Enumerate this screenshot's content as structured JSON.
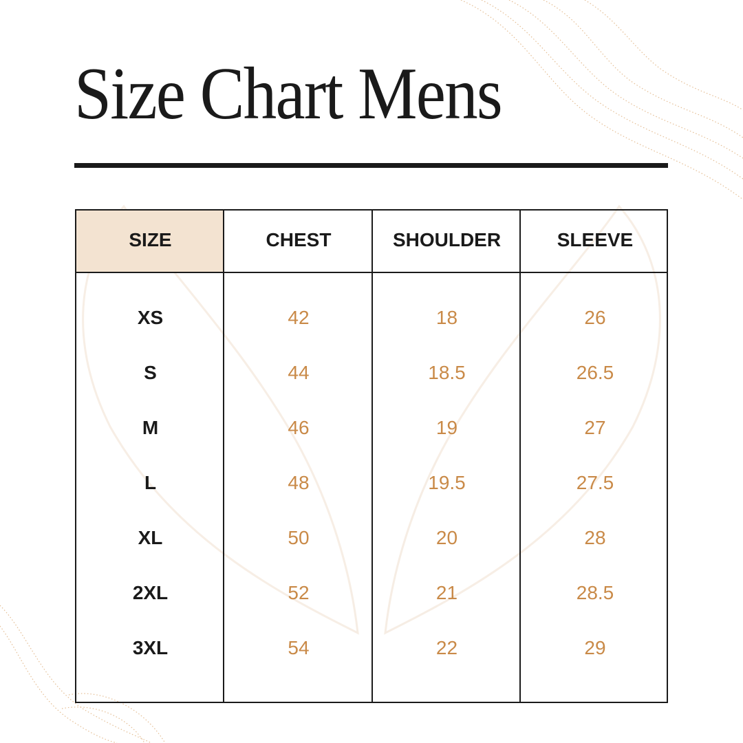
{
  "header": {
    "title": "Size Chart Mens"
  },
  "table": {
    "columns": [
      "SIZE",
      "CHEST",
      "SHOULDER",
      "SLEEVE"
    ],
    "rows": [
      [
        "XS",
        "42",
        "18",
        "26"
      ],
      [
        "S",
        "44",
        "18.5",
        "26.5"
      ],
      [
        "M",
        "46",
        "19",
        "27"
      ],
      [
        "L",
        "48",
        "19.5",
        "27.5"
      ],
      [
        "XL",
        "50",
        "20",
        "28"
      ],
      [
        "2XL",
        "52",
        "21",
        "28.5"
      ],
      [
        "3XL",
        "54",
        "22",
        "29"
      ]
    ]
  }
}
